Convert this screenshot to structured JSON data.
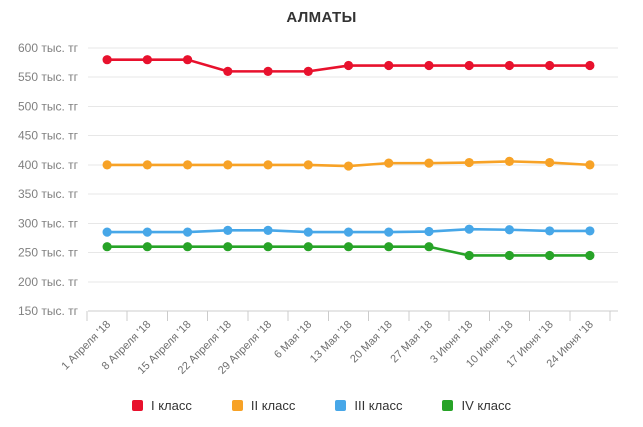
{
  "chart_data": {
    "type": "line",
    "title": "АЛМАТЫ",
    "ylabel": "тыс. тг",
    "ylim": [
      150,
      620
    ],
    "grid": true,
    "legend_position": "bottom",
    "yticks": [
      600,
      550,
      500,
      450,
      400,
      350,
      300,
      250,
      200,
      150
    ],
    "ytick_labels": [
      "600 тыс. тг",
      "550 тыс. тг",
      "500 тыс. тг",
      "450 тыс. тг",
      "400 тыс. тг",
      "350 тыс. тг",
      "300 тыс. тг",
      "250 тыс. тг",
      "200 тыс. тг",
      "150 тыс. тг"
    ],
    "x": [
      "1 Апреля '18",
      "8 Апреля '18",
      "15 Апреля '18",
      "22 Апреля '18",
      "29 Апреля '18",
      "6 Мая '18",
      "13 Мая '18",
      "20 Мая '18",
      "27 Мая '18",
      "3 Июня '18",
      "10 Июня '18",
      "17 Июня '18",
      "24 Июня '18"
    ],
    "series": [
      {
        "name": "I класс",
        "color": "#e8112d",
        "values": [
          580,
          580,
          580,
          560,
          560,
          560,
          570,
          570,
          570,
          570,
          570,
          570,
          570
        ]
      },
      {
        "name": "II класс",
        "color": "#f7a226",
        "values": [
          400,
          400,
          400,
          400,
          400,
          400,
          398,
          403,
          403,
          404,
          406,
          404,
          400
        ]
      },
      {
        "name": "III класс",
        "color": "#47a7e8",
        "values": [
          285,
          285,
          285,
          288,
          288,
          285,
          285,
          285,
          286,
          290,
          289,
          287,
          287
        ]
      },
      {
        "name": "IV класс",
        "color": "#27a327",
        "values": [
          260,
          260,
          260,
          260,
          260,
          260,
          260,
          260,
          260,
          245,
          245,
          245,
          245
        ]
      }
    ],
    "colors": {
      "title": "#333333",
      "ytick_text": "#808080",
      "xtick_text": "#6f6f6f",
      "gridline": "#e7e7e7",
      "axis": "#cccccc",
      "background": "#ffffff"
    }
  }
}
